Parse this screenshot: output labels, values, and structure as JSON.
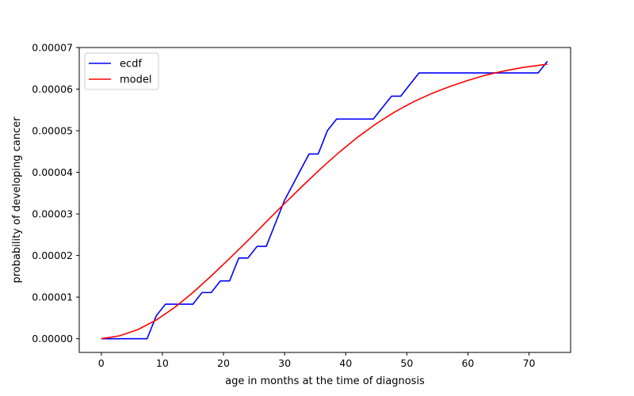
{
  "chart_data": {
    "type": "line",
    "xlabel": "age in months at the time of diagnosis",
    "ylabel": "probability of developing cancer",
    "xlim": [
      -3.6,
      76.8
    ],
    "ylim": [
      -3.3e-06,
      7e-05
    ],
    "xticks": [
      0,
      10,
      20,
      30,
      40,
      50,
      60,
      70
    ],
    "xtick_labels": [
      "0",
      "10",
      "20",
      "30",
      "40",
      "50",
      "60",
      "70"
    ],
    "yticks": [
      0,
      1e-05,
      2e-05,
      3e-05,
      4e-05,
      5e-05,
      6e-05,
      7e-05
    ],
    "ytick_labels": [
      "0.00000",
      "0.00001",
      "0.00002",
      "0.00003",
      "0.00004",
      "0.00005",
      "0.00006",
      "0.00007"
    ],
    "grid": false,
    "legend_position": "top-left",
    "series": [
      {
        "name": "ecdf",
        "color": "#0000ff",
        "x": [
          0,
          7.5,
          9,
          10.5,
          15,
          16.5,
          18,
          19.5,
          21,
          22.5,
          24,
          25.5,
          27,
          30,
          34,
          35.5,
          37,
          38.5,
          44.5,
          47.5,
          49,
          52,
          71.5,
          73
        ],
        "y": [
          0,
          0,
          5.5e-06,
          8.3e-06,
          8.3e-06,
          1.11e-05,
          1.11e-05,
          1.39e-05,
          1.39e-05,
          1.94e-05,
          1.94e-05,
          2.22e-05,
          2.22e-05,
          3.33e-05,
          4.44e-05,
          4.44e-05,
          5e-05,
          5.28e-05,
          5.28e-05,
          5.83e-05,
          5.83e-05,
          6.39e-05,
          6.39e-05,
          6.67e-05
        ]
      },
      {
        "name": "model",
        "color": "#ff0000",
        "x": [
          0,
          3,
          6,
          9,
          12,
          15,
          18,
          21,
          24,
          27,
          30,
          33,
          36,
          39,
          42,
          45,
          48,
          51,
          54,
          57,
          60,
          63,
          66,
          69,
          72,
          73
        ],
        "y": [
          0,
          7e-07,
          2.2e-06,
          4.5e-06,
          7.5e-06,
          1.11e-05,
          1.51e-05,
          1.93e-05,
          2.36e-05,
          2.81e-05,
          3.25e-05,
          3.68e-05,
          4.1e-05,
          4.49e-05,
          4.85e-05,
          5.17e-05,
          5.45e-05,
          5.69e-05,
          5.89e-05,
          6.06e-05,
          6.21e-05,
          6.34e-05,
          6.44e-05,
          6.52e-05,
          6.58e-05,
          6.6e-05
        ]
      }
    ]
  }
}
